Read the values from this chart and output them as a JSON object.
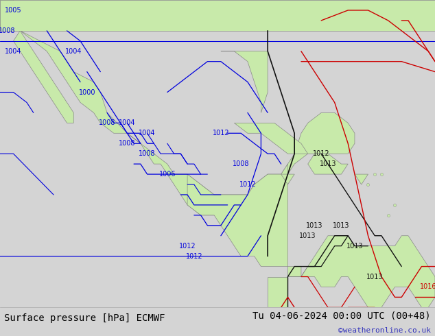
{
  "title_left": "Surface pressure [hPa] ECMWF",
  "title_right": "Tu 04-06-2024 00:00 UTC (00+48)",
  "copyright": "©weatheronline.co.uk",
  "land_color": "#c8eaaa",
  "sea_color": "#d4d4d4",
  "bar_color": "#f0f0f0",
  "blue": "#0000dd",
  "black": "#111111",
  "red": "#cc0000",
  "copyright_color": "#3333bb",
  "title_fontsize": 10,
  "label_fontsize": 7,
  "fig_width": 6.34,
  "fig_height": 4.9,
  "dpi": 100,
  "lon_min": -120,
  "lon_max": -55,
  "lat_min": 5,
  "lat_max": 35
}
